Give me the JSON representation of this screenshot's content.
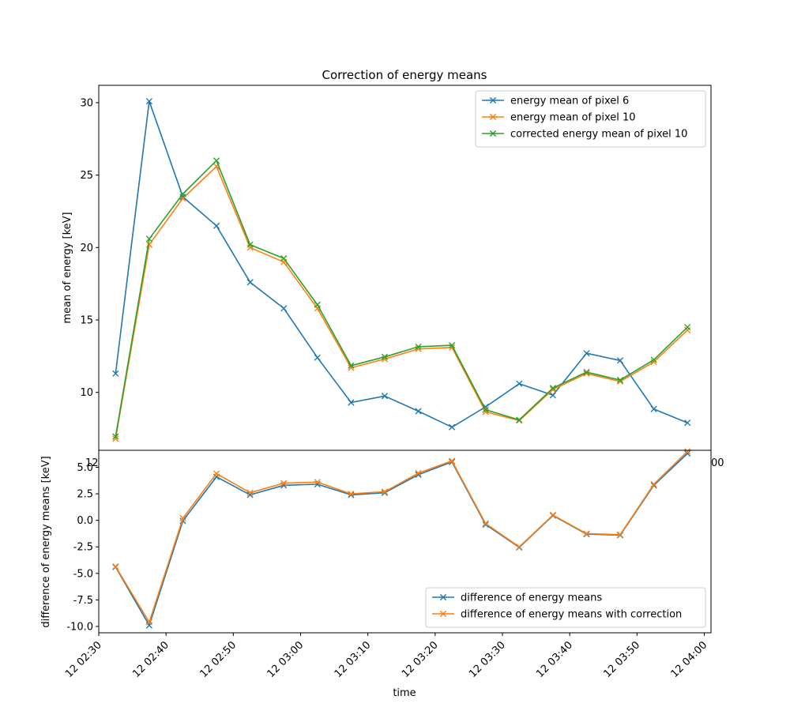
{
  "chart_data": [
    {
      "type": "line",
      "title": "Correction of energy means",
      "xlabel": "",
      "ylabel": "mean of energy [keV]",
      "yticks": [
        10,
        15,
        20,
        25,
        30
      ],
      "ylim": [
        6.0,
        31.2
      ],
      "grid": false,
      "legend_position": "top-right",
      "x": [
        "12 02:32:30",
        "12 02:37:30",
        "12 02:42:30",
        "12 02:47:30",
        "12 02:52:30",
        "12 02:57:30",
        "12 03:02:30",
        "12 03:07:30",
        "12 03:12:30",
        "12 03:17:30",
        "12 03:22:30",
        "12 03:27:30",
        "12 03:32:30",
        "12 03:37:30",
        "12 03:42:30",
        "12 03:47:30",
        "12 03:52:30",
        "12 03:57:30"
      ],
      "series": [
        {
          "name": "energy mean of pixel 6",
          "color": "#1f77b4",
          "marker": "x",
          "values": [
            11.3,
            30.1,
            23.5,
            21.5,
            17.6,
            15.8,
            12.4,
            9.3,
            9.75,
            8.7,
            7.6,
            9.0,
            10.6,
            9.8,
            12.7,
            12.2,
            8.85,
            7.9
          ]
        },
        {
          "name": "energy mean of pixel 10",
          "color": "#ff7f0e",
          "marker": "x",
          "values": [
            6.8,
            20.2,
            23.4,
            25.6,
            20.0,
            19.0,
            15.8,
            11.7,
            12.3,
            13.0,
            13.1,
            8.65,
            8.05,
            10.2,
            11.3,
            10.75,
            12.1,
            14.3
          ]
        },
        {
          "name": "corrected energy mean of pixel 10",
          "color": "#2ca02c",
          "marker": "x",
          "values": [
            6.95,
            20.6,
            23.7,
            26.0,
            20.2,
            19.25,
            16.05,
            11.85,
            12.45,
            13.15,
            13.25,
            8.8,
            8.1,
            10.3,
            11.4,
            10.85,
            12.25,
            14.5
          ]
        }
      ]
    },
    {
      "type": "line",
      "title": "",
      "xlabel": "time",
      "ylabel": "difference of energy means [keV]",
      "yticks": [
        "-10.0",
        "-7.5",
        "-5.0",
        "-2.5",
        "0.0",
        "2.5",
        "5.0"
      ],
      "ylim": [
        -10.6,
        6.6
      ],
      "xticks": [
        "12 02:30",
        "12 02:40",
        "12 02:50",
        "12 03:00",
        "12 03:10",
        "12 03:20",
        "12 03:30",
        "12 03:40",
        "12 03:50",
        "12 04:00"
      ],
      "xlim": [
        "12 02:30",
        "12 04:01"
      ],
      "grid": false,
      "legend_position": "bottom-right",
      "x": [
        "12 02:32:30",
        "12 02:37:30",
        "12 02:42:30",
        "12 02:47:30",
        "12 02:52:30",
        "12 02:57:30",
        "12 03:02:30",
        "12 03:07:30",
        "12 03:12:30",
        "12 03:17:30",
        "12 03:22:30",
        "12 03:27:30",
        "12 03:32:30",
        "12 03:37:30",
        "12 03:42:30",
        "12 03:47:30",
        "12 03:52:30",
        "12 03:57:30"
      ],
      "series": [
        {
          "name": "difference of energy means",
          "color": "#1f77b4",
          "marker": "x",
          "values": [
            -4.4,
            -9.9,
            -0.05,
            4.1,
            2.4,
            3.3,
            3.4,
            2.4,
            2.6,
            4.3,
            5.5,
            -0.4,
            -2.55,
            0.45,
            -1.3,
            -1.4,
            3.3,
            6.3
          ]
        },
        {
          "name": "difference of energy means with correction",
          "color": "#ff7f0e",
          "marker": "x",
          "values": [
            -4.35,
            -9.6,
            0.2,
            4.4,
            2.6,
            3.5,
            3.6,
            2.5,
            2.7,
            4.45,
            5.6,
            -0.3,
            -2.5,
            0.5,
            -1.25,
            -1.35,
            3.4,
            6.5
          ]
        }
      ]
    }
  ],
  "overlap_tick_fragments": {
    "left": "12",
    "right": "00"
  }
}
